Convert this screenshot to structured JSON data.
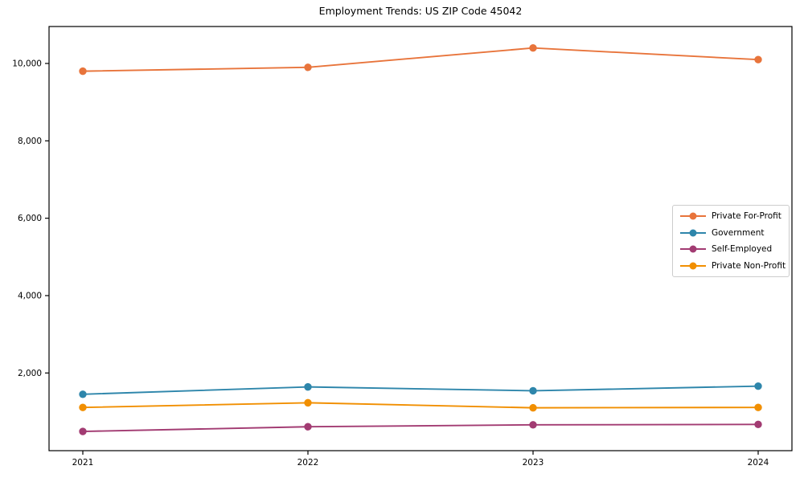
{
  "page": {
    "background_color": "#ffffff",
    "axis_color": "#000000",
    "legend_border_color": "#cccccc"
  },
  "chart_data": {
    "type": "line",
    "title": "Employment Trends: US ZIP Code 45042",
    "xlabel": "",
    "ylabel": "",
    "x": [
      2021,
      2022,
      2023,
      2024
    ],
    "x_tick_labels": [
      "2021",
      "2022",
      "2023",
      "2024"
    ],
    "y_tick_values": [
      2000,
      4000,
      6000,
      8000,
      10000
    ],
    "y_tick_labels": [
      "2,000",
      "4,000",
      "6,000",
      "8,000",
      "10,000"
    ],
    "xlim": [
      2020.85,
      2024.15
    ],
    "ylim": [
      -8,
      10955
    ],
    "grid": false,
    "legend_position": "center right",
    "marker": "circle",
    "series": [
      {
        "name": "Private For-Profit",
        "color": "#E8743B",
        "values": [
          9800,
          9900,
          10400,
          10100
        ]
      },
      {
        "name": "Government",
        "color": "#2E86AB",
        "values": [
          1450,
          1640,
          1540,
          1660
        ]
      },
      {
        "name": "Self-Employed",
        "color": "#A23B72",
        "values": [
          490,
          610,
          660,
          670
        ]
      },
      {
        "name": "Private Non-Profit",
        "color": "#F18F01",
        "values": [
          1110,
          1230,
          1100,
          1110
        ]
      }
    ]
  }
}
